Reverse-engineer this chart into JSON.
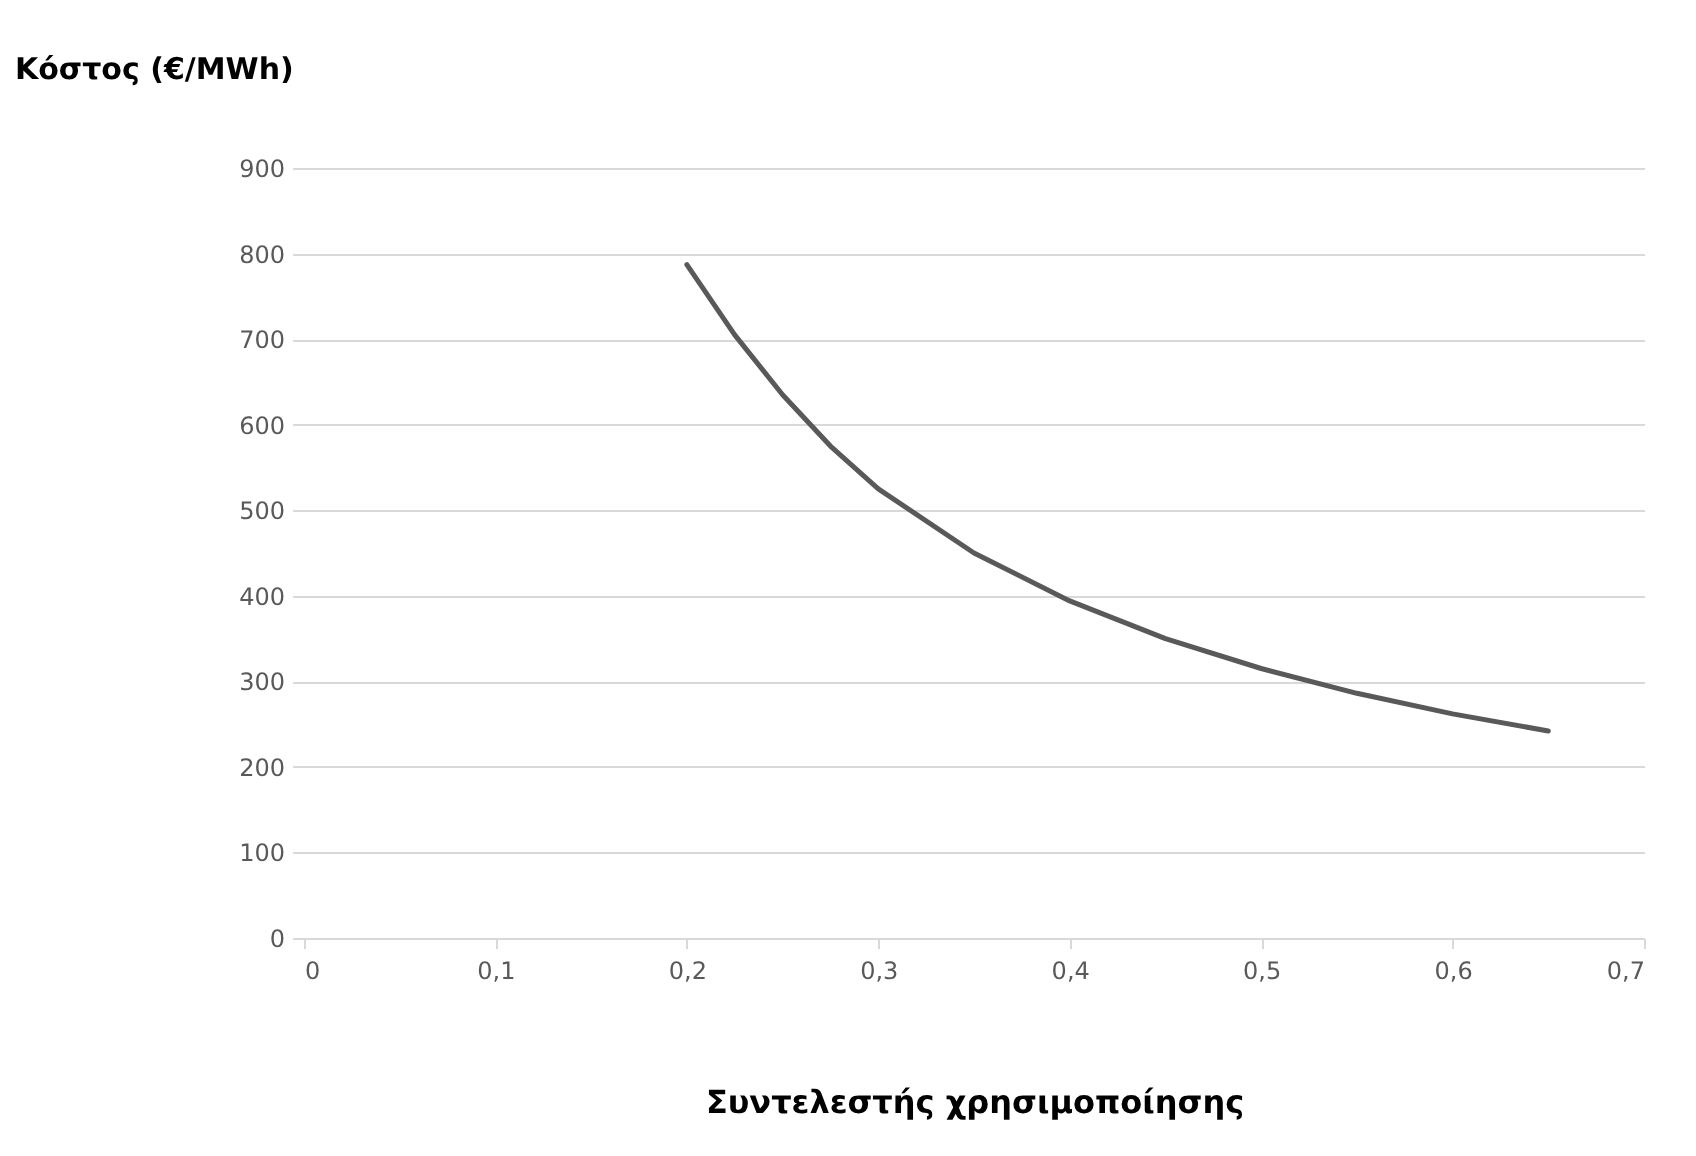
{
  "chart_data": {
    "type": "line",
    "xlabel": "Συντελεστής χρησιμοποίησης",
    "ylabel": "Κόστος (€/MWh)",
    "x": [
      0.2,
      0.225,
      0.25,
      0.275,
      0.3,
      0.35,
      0.4,
      0.45,
      0.5,
      0.55,
      0.6,
      0.65
    ],
    "series": [
      {
        "color": "#595959",
        "values": [
          787,
          705,
          635,
          575,
          525,
          450,
          394,
          350,
          315,
          286,
          262,
          242
        ]
      }
    ],
    "xlim": [
      0,
      0.7
    ],
    "xticks": [
      0,
      {
        "value": 0.1,
        "label": "0,1"
      },
      {
        "value": 0.2,
        "label": "0,2"
      },
      {
        "value": 0.3,
        "label": "0,3"
      },
      {
        "value": 0.4,
        "label": "0,4"
      },
      {
        "value": 0.5,
        "label": "0,5"
      },
      {
        "value": 0.6,
        "label": "0,6"
      },
      {
        "value": 0.7,
        "label": "0,7"
      }
    ],
    "ylim": [
      0,
      900
    ],
    "yticks": [
      0,
      100,
      200,
      300,
      400,
      500,
      600,
      700,
      800,
      900
    ],
    "grid": "y",
    "marker": "none",
    "line_style": "solid"
  }
}
